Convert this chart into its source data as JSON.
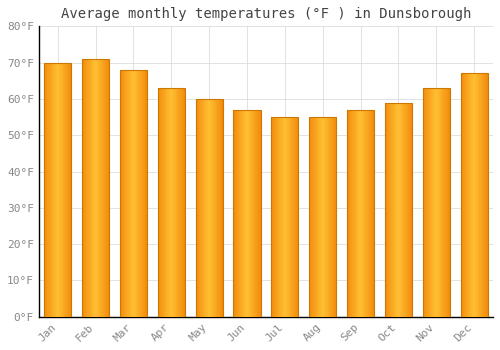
{
  "title": "Average monthly temperatures (°F ) in Dunsborough",
  "months": [
    "Jan",
    "Feb",
    "Mar",
    "Apr",
    "May",
    "Jun",
    "Jul",
    "Aug",
    "Sep",
    "Oct",
    "Nov",
    "Dec"
  ],
  "values": [
    70,
    71,
    68,
    63,
    60,
    57,
    55,
    55,
    57,
    59,
    63,
    67
  ],
  "bar_color_center": "#FFB74D",
  "bar_color_edge": "#F57F17",
  "background_color": "#FFFFFF",
  "plot_bg_color": "#FFFFFF",
  "grid_color": "#DDDDDD",
  "ylim": [
    0,
    80
  ],
  "yticks": [
    0,
    10,
    20,
    30,
    40,
    50,
    60,
    70,
    80
  ],
  "title_fontsize": 10,
  "tick_fontsize": 8,
  "tick_color": "#888888",
  "title_color": "#444444",
  "font_family": "monospace",
  "bar_width": 0.72,
  "spine_color": "#000000"
}
